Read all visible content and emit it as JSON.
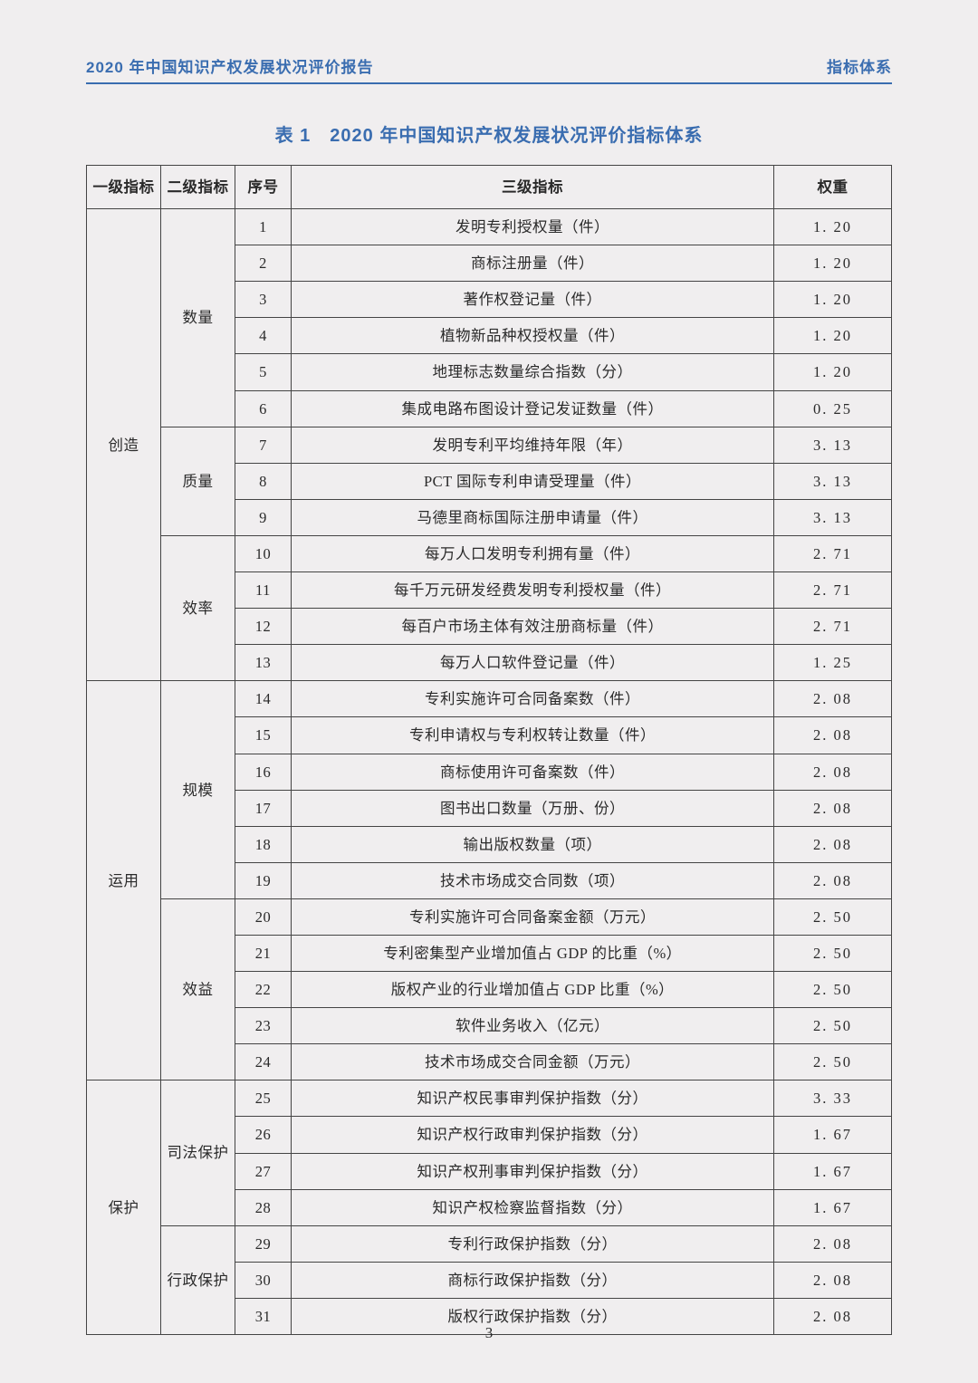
{
  "header": {
    "left": "2020 年中国知识产权发展状况评价报告",
    "right": "指标体系"
  },
  "title": "表 1　2020 年中国知识产权发展状况评价指标体系",
  "columns": {
    "level1": "一级指标",
    "level2": "二级指标",
    "seq": "序号",
    "level3": "三级指标",
    "weight": "权重"
  },
  "colors": {
    "accent": "#3a6db0",
    "text": "#2a2a2a",
    "background": "#f0eeef",
    "border": "#444444"
  },
  "groups": [
    {
      "level1": "创造",
      "subgroups": [
        {
          "level2": "数量",
          "rows": [
            {
              "seq": "1",
              "level3": "发明专利授权量（件）",
              "weight": "1. 20"
            },
            {
              "seq": "2",
              "level3": "商标注册量（件）",
              "weight": "1. 20"
            },
            {
              "seq": "3",
              "level3": "著作权登记量（件）",
              "weight": "1. 20"
            },
            {
              "seq": "4",
              "level3": "植物新品种权授权量（件）",
              "weight": "1. 20"
            },
            {
              "seq": "5",
              "level3": "地理标志数量综合指数（分）",
              "weight": "1. 20"
            },
            {
              "seq": "6",
              "level3": "集成电路布图设计登记发证数量（件）",
              "weight": "0. 25"
            }
          ]
        },
        {
          "level2": "质量",
          "rows": [
            {
              "seq": "7",
              "level3": "发明专利平均维持年限（年）",
              "weight": "3. 13"
            },
            {
              "seq": "8",
              "level3": "PCT 国际专利申请受理量（件）",
              "weight": "3. 13"
            },
            {
              "seq": "9",
              "level3": "马德里商标国际注册申请量（件）",
              "weight": "3. 13"
            }
          ]
        },
        {
          "level2": "效率",
          "rows": [
            {
              "seq": "10",
              "level3": "每万人口发明专利拥有量（件）",
              "weight": "2. 71"
            },
            {
              "seq": "11",
              "level3": "每千万元研发经费发明专利授权量（件）",
              "weight": "2. 71"
            },
            {
              "seq": "12",
              "level3": "每百户市场主体有效注册商标量（件）",
              "weight": "2. 71"
            },
            {
              "seq": "13",
              "level3": "每万人口软件登记量（件）",
              "weight": "1. 25"
            }
          ]
        }
      ]
    },
    {
      "level1": "运用",
      "subgroups": [
        {
          "level2": "规模",
          "rows": [
            {
              "seq": "14",
              "level3": "专利实施许可合同备案数（件）",
              "weight": "2. 08"
            },
            {
              "seq": "15",
              "level3": "专利申请权与专利权转让数量（件）",
              "weight": "2. 08"
            },
            {
              "seq": "16",
              "level3": "商标使用许可备案数（件）",
              "weight": "2. 08"
            },
            {
              "seq": "17",
              "level3": "图书出口数量（万册、份）",
              "weight": "2. 08"
            },
            {
              "seq": "18",
              "level3": "输出版权数量（项）",
              "weight": "2. 08"
            },
            {
              "seq": "19",
              "level3": "技术市场成交合同数（项）",
              "weight": "2. 08"
            }
          ]
        },
        {
          "level2": "效益",
          "rows": [
            {
              "seq": "20",
              "level3": "专利实施许可合同备案金额（万元）",
              "weight": "2. 50"
            },
            {
              "seq": "21",
              "level3": "专利密集型产业增加值占 GDP 的比重（%）",
              "weight": "2. 50"
            },
            {
              "seq": "22",
              "level3": "版权产业的行业增加值占 GDP 比重（%）",
              "weight": "2. 50"
            },
            {
              "seq": "23",
              "level3": "软件业务收入（亿元）",
              "weight": "2. 50"
            },
            {
              "seq": "24",
              "level3": "技术市场成交合同金额（万元）",
              "weight": "2. 50"
            }
          ]
        }
      ]
    },
    {
      "level1": "保护",
      "subgroups": [
        {
          "level2": "司法保护",
          "rows": [
            {
              "seq": "25",
              "level3": "知识产权民事审判保护指数（分）",
              "weight": "3. 33"
            },
            {
              "seq": "26",
              "level3": "知识产权行政审判保护指数（分）",
              "weight": "1. 67"
            },
            {
              "seq": "27",
              "level3": "知识产权刑事审判保护指数（分）",
              "weight": "1. 67"
            },
            {
              "seq": "28",
              "level3": "知识产权检察监督指数（分）",
              "weight": "1. 67"
            }
          ]
        },
        {
          "level2": "行政保护",
          "rows": [
            {
              "seq": "29",
              "level3": "专利行政保护指数（分）",
              "weight": "2. 08"
            },
            {
              "seq": "30",
              "level3": "商标行政保护指数（分）",
              "weight": "2. 08"
            },
            {
              "seq": "31",
              "level3": "版权行政保护指数（分）",
              "weight": "2. 08"
            }
          ]
        }
      ]
    }
  ],
  "pageNumber": "3"
}
